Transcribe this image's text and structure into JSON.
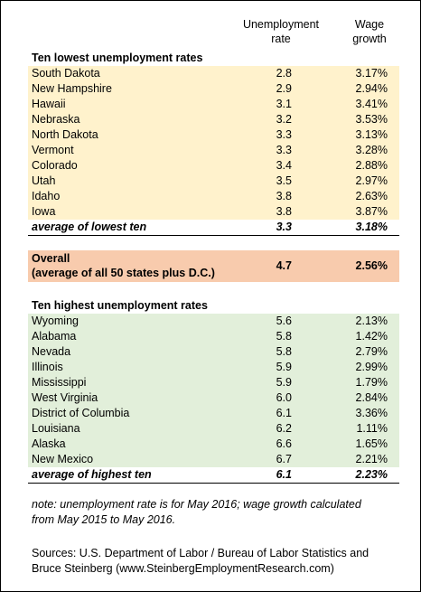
{
  "header": {
    "rate": "Unemployment rate",
    "wage": "Wage growth"
  },
  "lowest": {
    "title": "Ten lowest unemployment rates",
    "rows": [
      [
        "South Dakota",
        "2.8",
        "3.17%"
      ],
      [
        "New Hampshire",
        "2.9",
        "2.94%"
      ],
      [
        "Hawaii",
        "3.1",
        "3.41%"
      ],
      [
        "Nebraska",
        "3.2",
        "3.53%"
      ],
      [
        "North Dakota",
        "3.3",
        "3.13%"
      ],
      [
        "Vermont",
        "3.3",
        "3.28%"
      ],
      [
        "Colorado",
        "3.4",
        "2.88%"
      ],
      [
        "Utah",
        "3.5",
        "2.97%"
      ],
      [
        "Idaho",
        "3.8",
        "2.63%"
      ],
      [
        "Iowa",
        "3.8",
        "3.87%"
      ]
    ],
    "average": [
      "average of lowest ten",
      "3.3",
      "3.18%"
    ]
  },
  "overall": {
    "label": [
      "Overall",
      "(average of all 50 states plus D.C.)"
    ],
    "rate": "4.7",
    "wage": "2.56%"
  },
  "highest": {
    "title": "Ten highest unemployment rates",
    "rows": [
      [
        "Wyoming",
        "5.6",
        "2.13%"
      ],
      [
        "Alabama",
        "5.8",
        "1.42%"
      ],
      [
        "Nevada",
        "5.8",
        "2.79%"
      ],
      [
        "Illinois",
        "5.9",
        "2.99%"
      ],
      [
        "Mississippi",
        "5.9",
        "1.79%"
      ],
      [
        "West Virginia",
        "6.0",
        "2.84%"
      ],
      [
        "District of Columbia",
        "6.1",
        "3.36%"
      ],
      [
        "Louisiana",
        "6.2",
        "1.11%"
      ],
      [
        "Alaska",
        "6.6",
        "1.65%"
      ],
      [
        "New Mexico",
        "6.7",
        "2.21%"
      ]
    ],
    "average": [
      "average of highest ten",
      "6.1",
      "2.23%"
    ]
  },
  "note": [
    "note: unemployment rate is for May 2016; wage growth calculated",
    "from May 2015 to May 2016."
  ],
  "sources": [
    "Sources: U.S. Department of Labor / Bureau of Labor Statistics and",
    "Bruce Steinberg (www.SteinbergEmploymentResearch.com)"
  ]
}
